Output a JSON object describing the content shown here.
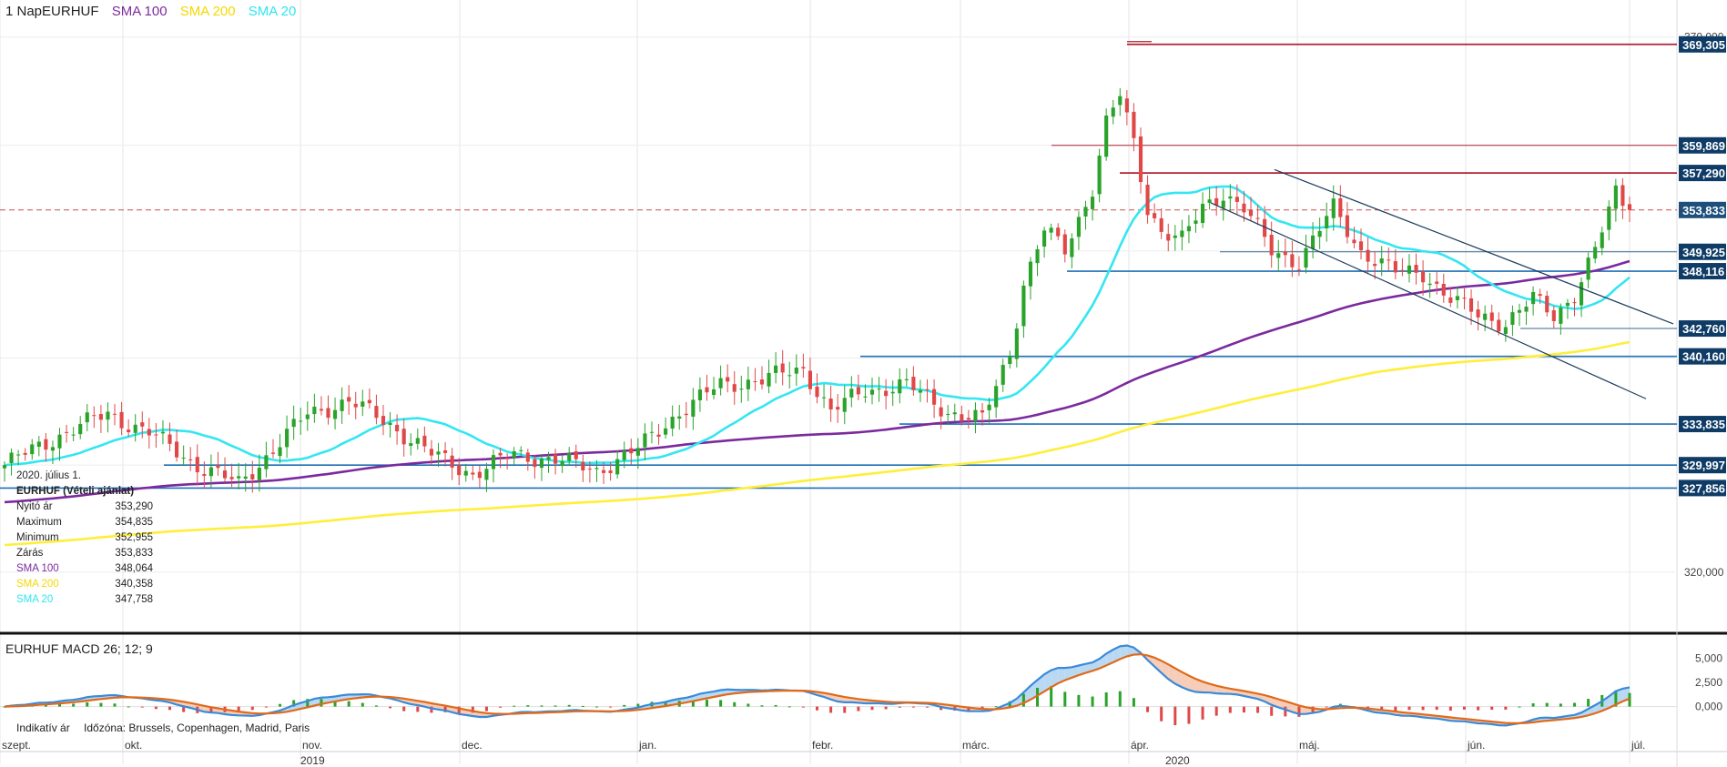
{
  "legend": {
    "symbol_label": "1 NapEURHUF",
    "indicators": [
      {
        "label": "SMA 100",
        "color": "#7b2a9e"
      },
      {
        "label": "SMA 200",
        "color": "#ffea00"
      },
      {
        "label": "SMA 20",
        "color": "#2ee6f0"
      }
    ]
  },
  "info_panel": {
    "date": "2020. július 1.",
    "title": "EURHUF (Vételi ajánlat)",
    "rows": [
      {
        "label": "Nyitó ár",
        "value": "353,290",
        "color": "#222222"
      },
      {
        "label": "Maximum",
        "value": "354,835",
        "color": "#222222"
      },
      {
        "label": "Minimum",
        "value": "352,955",
        "color": "#222222"
      },
      {
        "label": "Zárás",
        "value": "353,833",
        "color": "#222222"
      },
      {
        "label": "SMA 100",
        "value": "348,064",
        "color": "#7b2a9e"
      },
      {
        "label": "SMA 200",
        "value": "340,358",
        "color": "#f5d800"
      },
      {
        "label": "SMA 20",
        "value": "347,758",
        "color": "#2ee6f0"
      }
    ]
  },
  "macd_legend": {
    "label": "EURHUF  MACD 26; 12; 9"
  },
  "timezone": {
    "label": "Indikatív ár",
    "zone": "Időzóna: Brussels, Copenhagen, Madrid, Paris"
  },
  "colors": {
    "up_candle": "#29a329",
    "down_candle": "#e04848",
    "support_line": "#1f6fb5",
    "resistance_line": "#b02030",
    "trend_line": "#1d3d5c",
    "price_badge": "#0f3c66",
    "macd_line": "#3a8ad8",
    "signal_line": "#e06a1a"
  },
  "chart_data": {
    "type": "candlestick",
    "symbol": "EURHUF",
    "y_axis": {
      "ylim": [
        314.8,
        370.9
      ],
      "tick_labels": [
        "370,000",
        "320,000"
      ],
      "tick_values": [
        370,
        320
      ]
    },
    "x_axis": {
      "months": [
        "szept.",
        "okt.",
        "nov.",
        "dec.",
        "jan.",
        "febr.",
        "márc.",
        "ápr.",
        "máj.",
        "jún.",
        "júl."
      ],
      "years": [
        "2019",
        "2020"
      ]
    },
    "price_levels": [
      {
        "label": "369,305",
        "value": 369.305,
        "kind": "resistance"
      },
      {
        "label": "359,869",
        "value": 359.869,
        "kind": "resistance"
      },
      {
        "label": "357,290",
        "value": 357.29,
        "kind": "resistance"
      },
      {
        "label": "353,833",
        "value": 353.833,
        "kind": "current"
      },
      {
        "label": "349,925",
        "value": 349.925,
        "kind": "support"
      },
      {
        "label": "348,116",
        "value": 348.116,
        "kind": "support"
      },
      {
        "label": "342,760",
        "value": 342.76,
        "kind": "support"
      },
      {
        "label": "340,160",
        "value": 340.16,
        "kind": "support"
      },
      {
        "label": "333,835",
        "value": 333.835,
        "kind": "support"
      },
      {
        "label": "329,997",
        "value": 329.997,
        "kind": "support"
      },
      {
        "label": "327,856",
        "value": 327.856,
        "kind": "support"
      }
    ],
    "anchors": [
      {
        "i": 0,
        "v": 330.0
      },
      {
        "i": 8,
        "v": 332.8
      },
      {
        "i": 15,
        "v": 334.8
      },
      {
        "i": 21,
        "v": 333.0
      },
      {
        "i": 28,
        "v": 330.0
      },
      {
        "i": 34,
        "v": 328.2
      },
      {
        "i": 38,
        "v": 330.8
      },
      {
        "i": 44,
        "v": 334.8
      },
      {
        "i": 50,
        "v": 336.0
      },
      {
        "i": 56,
        "v": 333.8
      },
      {
        "i": 62,
        "v": 331.0
      },
      {
        "i": 68,
        "v": 329.2
      },
      {
        "i": 74,
        "v": 331.0
      },
      {
        "i": 80,
        "v": 330.5
      },
      {
        "i": 86,
        "v": 329.5
      },
      {
        "i": 92,
        "v": 331.5
      },
      {
        "i": 98,
        "v": 335.0
      },
      {
        "i": 104,
        "v": 337.5
      },
      {
        "i": 110,
        "v": 338.0
      },
      {
        "i": 116,
        "v": 339.0
      },
      {
        "i": 120,
        "v": 335.0
      },
      {
        "i": 125,
        "v": 337.0
      },
      {
        "i": 131,
        "v": 337.5
      },
      {
        "i": 137,
        "v": 335.0
      },
      {
        "i": 142,
        "v": 334.2
      },
      {
        "i": 146,
        "v": 340.5
      },
      {
        "i": 148,
        "v": 347.0
      },
      {
        "i": 151,
        "v": 352.0
      },
      {
        "i": 154,
        "v": 350.0
      },
      {
        "i": 158,
        "v": 356.0
      },
      {
        "i": 160,
        "v": 362.0
      },
      {
        "i": 162,
        "v": 364.5
      },
      {
        "i": 164,
        "v": 360.0
      },
      {
        "i": 166,
        "v": 354.0
      },
      {
        "i": 168,
        "v": 352.0
      },
      {
        "i": 171,
        "v": 351.0
      },
      {
        "i": 174,
        "v": 354.0
      },
      {
        "i": 177,
        "v": 355.5
      },
      {
        "i": 180,
        "v": 354.0
      },
      {
        "i": 184,
        "v": 350.0
      },
      {
        "i": 188,
        "v": 349.0
      },
      {
        "i": 193,
        "v": 354.0
      },
      {
        "i": 197,
        "v": 350.0
      },
      {
        "i": 202,
        "v": 348.0
      },
      {
        "i": 206,
        "v": 348.0
      },
      {
        "i": 210,
        "v": 345.5
      },
      {
        "i": 214,
        "v": 344.0
      },
      {
        "i": 218,
        "v": 343.3
      },
      {
        "i": 222,
        "v": 345.5
      },
      {
        "i": 225,
        "v": 344.0
      },
      {
        "i": 228,
        "v": 346.0
      },
      {
        "i": 231,
        "v": 350.0
      },
      {
        "i": 234,
        "v": 355.5
      },
      {
        "i": 236,
        "v": 353.833
      }
    ],
    "candle_count": 237,
    "sma_length": [
      20,
      100,
      200
    ],
    "macd": {
      "ylim": [
        -2200,
        7200
      ],
      "tick_labels": [
        "5,000",
        "2,500",
        "0,000"
      ],
      "tick_values": [
        5000,
        2500,
        0
      ]
    }
  }
}
